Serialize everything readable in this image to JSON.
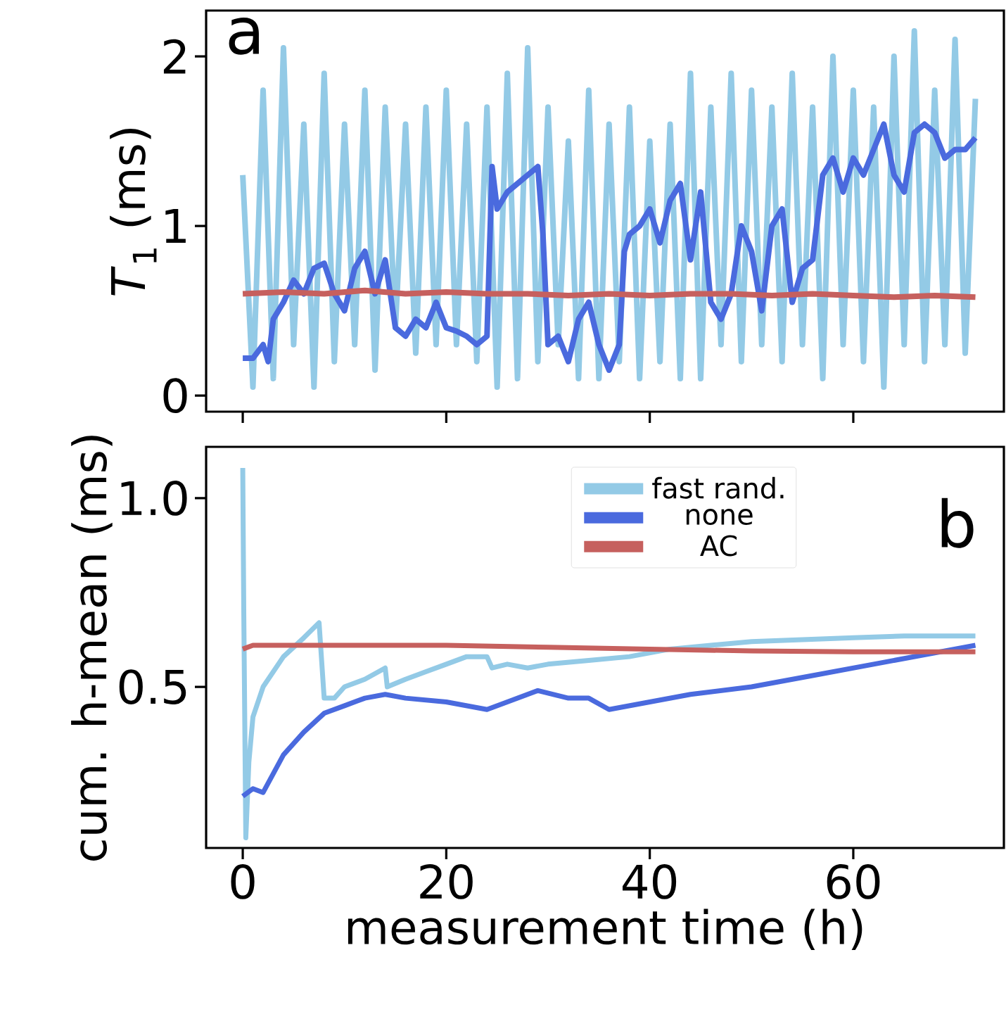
{
  "chart_data": [
    {
      "type": "line",
      "ylabel": "*T*$_{1}$ (ms)",
      "annotations": [
        "a"
      ],
      "xlim": [
        -3.6,
        74.8
      ],
      "ylim": [
        -0.095,
        2.27
      ],
      "xticks": [
        0,
        20,
        40,
        60
      ],
      "yticks": [
        0,
        1,
        2
      ],
      "tick_labels": "y",
      "series": [
        {
          "color": "#93cae6",
          "x": [
            0,
            1,
            2,
            3,
            4,
            5,
            6,
            7,
            8,
            9,
            10,
            11,
            12,
            13,
            14,
            15,
            16,
            17,
            18,
            19,
            20,
            21,
            22,
            23,
            24,
            25,
            26,
            27,
            28,
            29,
            30,
            31,
            32,
            33,
            34,
            35,
            36,
            37,
            38,
            39,
            40,
            41,
            42,
            43,
            44,
            45,
            46,
            47,
            48,
            49,
            50,
            51,
            52,
            53,
            54,
            55,
            56,
            57,
            58,
            59,
            60,
            61,
            62,
            63,
            64,
            65,
            66,
            67,
            68,
            69,
            70,
            71,
            72
          ],
          "values": [
            1.3,
            0.05,
            1.8,
            0.1,
            2.05,
            0.3,
            1.6,
            0.05,
            1.9,
            0.2,
            1.6,
            0.3,
            1.8,
            0.15,
            1.7,
            0.4,
            1.6,
            0.25,
            1.7,
            0.3,
            1.8,
            0.3,
            1.6,
            0.2,
            1.7,
            0.05,
            1.9,
            0.1,
            2.05,
            0.2,
            1.7,
            0.3,
            1.5,
            0.1,
            1.8,
            0.1,
            1.6,
            0.2,
            1.7,
            0.1,
            1.5,
            0.2,
            1.6,
            0.1,
            1.9,
            0.1,
            1.7,
            0.3,
            1.9,
            0.2,
            1.8,
            0.3,
            1.7,
            0.2,
            1.9,
            0.3,
            1.7,
            0.1,
            2.0,
            0.3,
            1.8,
            0.2,
            1.7,
            0.05,
            2.0,
            0.3,
            2.15,
            0.2,
            1.8,
            0.3,
            2.1,
            0.25,
            1.75
          ]
        },
        {
          "color": "#4a6ade",
          "x": [
            0,
            1,
            2,
            2.5,
            3,
            4,
            5,
            6,
            7,
            8,
            9,
            10,
            11,
            12,
            13,
            14,
            15,
            16,
            17,
            18,
            19,
            20,
            21,
            22,
            23,
            24,
            24.5,
            25,
            26,
            27,
            28,
            29,
            29.5,
            30,
            31,
            32,
            33,
            34,
            35,
            36,
            37,
            37.5,
            38,
            39,
            40,
            41,
            42,
            43,
            44,
            45,
            46,
            47,
            48,
            49,
            50,
            51,
            52,
            53,
            54,
            55,
            56,
            57,
            58,
            59,
            60,
            61,
            62,
            63,
            64,
            65,
            66,
            67,
            68,
            69,
            70,
            71,
            72
          ],
          "values": [
            0.22,
            0.22,
            0.3,
            0.2,
            0.45,
            0.55,
            0.68,
            0.6,
            0.75,
            0.78,
            0.6,
            0.5,
            0.75,
            0.85,
            0.6,
            0.8,
            0.4,
            0.35,
            0.45,
            0.4,
            0.55,
            0.4,
            0.38,
            0.35,
            0.3,
            0.35,
            1.35,
            1.1,
            1.2,
            1.25,
            1.3,
            1.35,
            0.95,
            0.3,
            0.35,
            0.2,
            0.45,
            0.55,
            0.3,
            0.15,
            0.3,
            0.85,
            0.95,
            1.0,
            1.1,
            0.9,
            1.15,
            1.25,
            0.8,
            1.2,
            0.55,
            0.45,
            0.6,
            1.0,
            0.85,
            0.5,
            1.0,
            1.1,
            0.55,
            0.75,
            0.8,
            1.3,
            1.4,
            1.2,
            1.4,
            1.3,
            1.45,
            1.6,
            1.3,
            1.2,
            1.55,
            1.6,
            1.55,
            1.4,
            1.45,
            1.45,
            1.52
          ]
        },
        {
          "color": "#c6605e",
          "x": [
            0,
            4,
            8,
            12,
            16,
            20,
            24,
            28,
            32,
            36,
            40,
            44,
            48,
            52,
            56,
            60,
            64,
            68,
            72
          ],
          "values": [
            0.6,
            0.61,
            0.6,
            0.62,
            0.6,
            0.61,
            0.6,
            0.6,
            0.59,
            0.6,
            0.59,
            0.6,
            0.6,
            0.59,
            0.6,
            0.59,
            0.58,
            0.59,
            0.58
          ]
        }
      ]
    },
    {
      "type": "line",
      "xlabel": "measurement time (h)",
      "ylabel": "cum. h-mean (ms)",
      "annotations": [
        "b"
      ],
      "xlim": [
        -3.6,
        74.8
      ],
      "ylim": [
        0.073,
        1.136
      ],
      "xticks": [
        0,
        20,
        40,
        60
      ],
      "yticks": [
        0.5,
        {
          "value": 1,
          "label": "1.0"
        }
      ],
      "legend": "top right",
      "series": [
        {
          "name": "fast rand.",
          "color": "#93cae6",
          "x": [
            0,
            0.1,
            0.3,
            0.6,
            1,
            2,
            4,
            6,
            7.5,
            8,
            9,
            10,
            12,
            14,
            14.2,
            16,
            18,
            20,
            22,
            24,
            24.5,
            26,
            28,
            30,
            34,
            38,
            42,
            46,
            50,
            55,
            60,
            65,
            72
          ],
          "values": [
            1.08,
            0.7,
            0.1,
            0.3,
            0.42,
            0.5,
            0.58,
            0.63,
            0.67,
            0.47,
            0.47,
            0.5,
            0.52,
            0.55,
            0.5,
            0.52,
            0.54,
            0.56,
            0.58,
            0.58,
            0.55,
            0.56,
            0.55,
            0.56,
            0.57,
            0.58,
            0.6,
            0.61,
            0.62,
            0.625,
            0.63,
            0.635,
            0.635
          ]
        },
        {
          "name": "none",
          "color": "#4a6ade",
          "x": [
            0,
            1,
            2,
            3,
            4,
            6,
            8,
            10,
            12,
            14,
            16,
            20,
            24,
            26,
            29,
            32,
            34,
            36,
            40,
            44,
            50,
            56,
            62,
            68,
            72
          ],
          "values": [
            0.21,
            0.23,
            0.22,
            0.27,
            0.32,
            0.38,
            0.43,
            0.45,
            0.47,
            0.48,
            0.47,
            0.46,
            0.44,
            0.46,
            0.49,
            0.47,
            0.47,
            0.44,
            0.46,
            0.48,
            0.5,
            0.53,
            0.56,
            0.59,
            0.61
          ]
        },
        {
          "name": "AC",
          "color": "#c6605e",
          "x": [
            0,
            1,
            10,
            20,
            30,
            40,
            50,
            60,
            72
          ],
          "values": [
            0.6,
            0.61,
            0.61,
            0.61,
            0.605,
            0.6,
            0.595,
            0.593,
            0.593
          ]
        }
      ]
    }
  ]
}
